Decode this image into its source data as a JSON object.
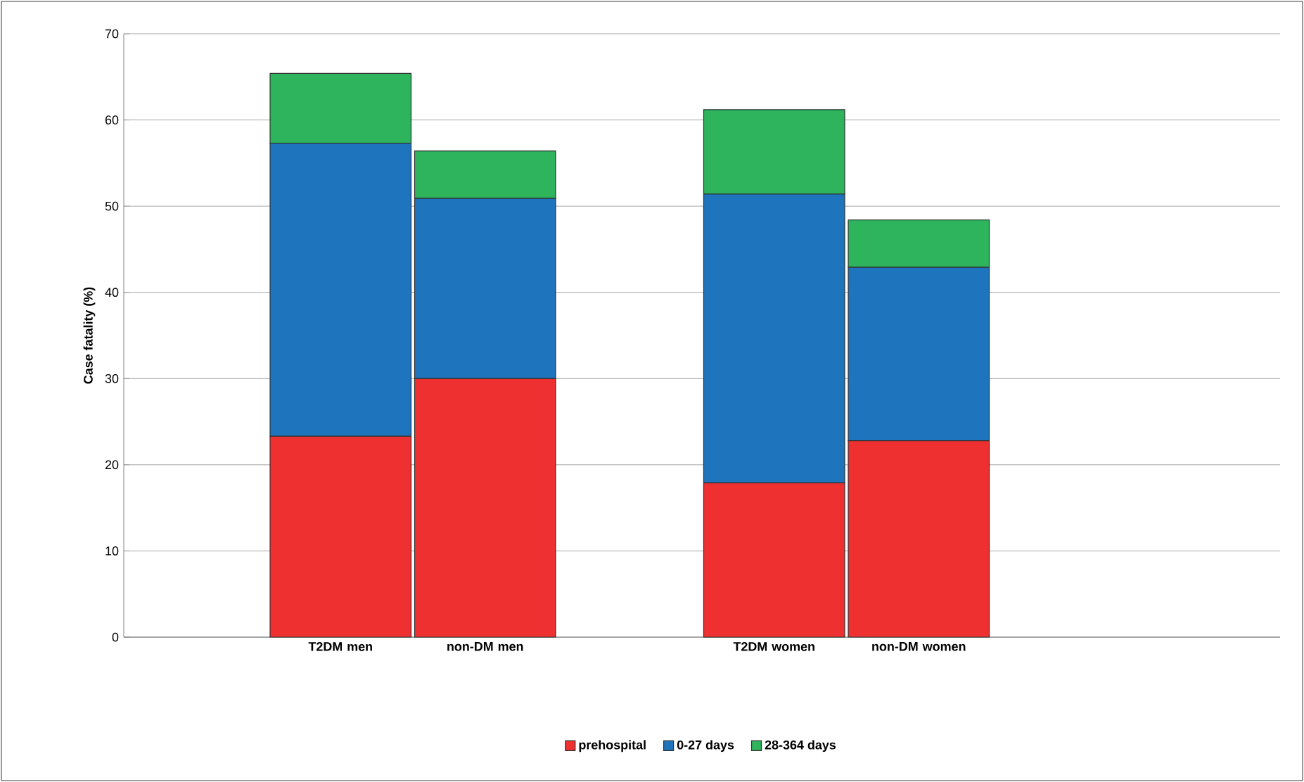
{
  "chart_data": {
    "type": "bar",
    "stacked": true,
    "ylabel": "Case fatality (%)",
    "categories": [
      null,
      "T2DM men",
      "non-DM men",
      null,
      "T2DM women",
      "non-DM women",
      null,
      null
    ],
    "series": [
      {
        "name": "prehospital",
        "color": "#ee3030",
        "values": [
          null,
          23.3,
          30.0,
          null,
          17.9,
          22.8,
          null,
          null
        ]
      },
      {
        "name": "0-27 days",
        "color": "#1f74be",
        "values": [
          null,
          34.0,
          20.9,
          null,
          33.5,
          20.1,
          null,
          null
        ]
      },
      {
        "name": "28-364 days",
        "color": "#2db45c",
        "values": [
          null,
          8.1,
          5.5,
          null,
          9.8,
          5.5,
          null,
          null
        ]
      }
    ],
    "ylim": [
      0,
      70
    ],
    "yticks": [
      0,
      10,
      20,
      30,
      40,
      50,
      60,
      70
    ],
    "grid": "y",
    "legend": "bottom"
  }
}
